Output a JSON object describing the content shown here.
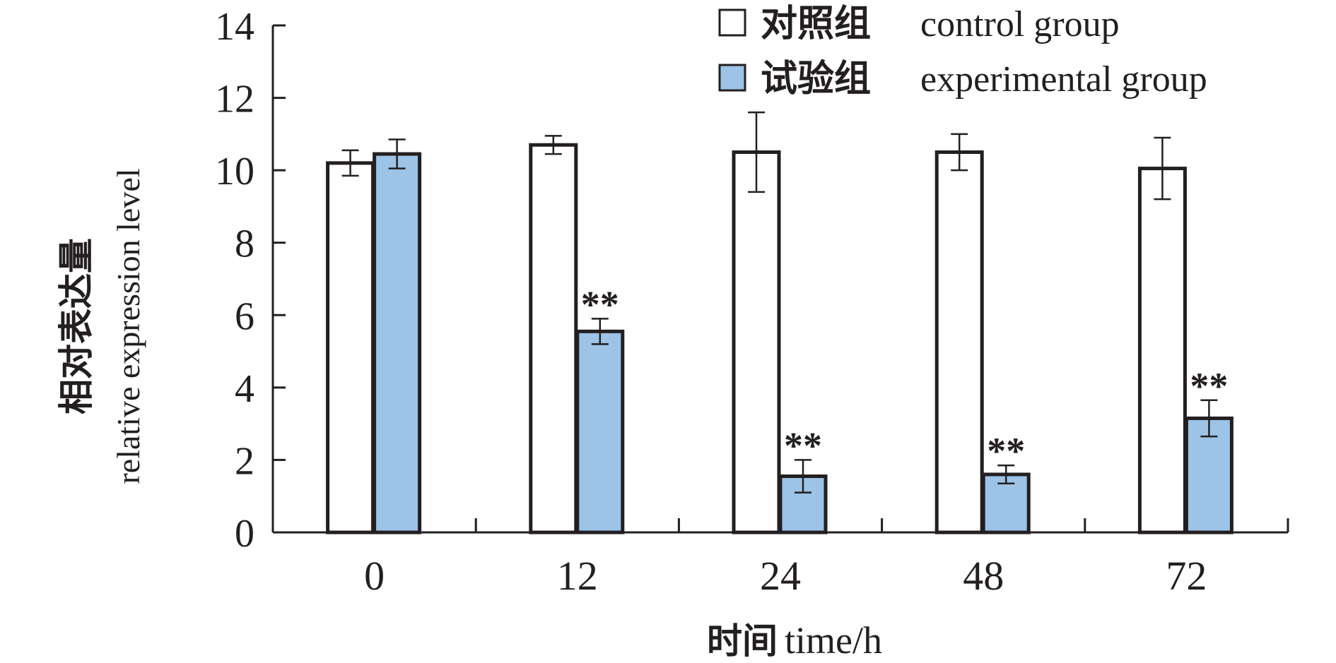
{
  "chart_data": {
    "type": "bar",
    "ylabel": {
      "cn": "相对表达量",
      "en": "relative expression level"
    },
    "xlabel": {
      "cn": "时间",
      "en": "time/h"
    },
    "ylim": [
      0,
      14
    ],
    "yticks": [
      0,
      2,
      4,
      6,
      8,
      10,
      12,
      14
    ],
    "categories": [
      "0",
      "12",
      "24",
      "48",
      "72"
    ],
    "legend_position": "top-right",
    "series": [
      {
        "name_cn": "对照组",
        "name_en": "control group",
        "color": "#ffffff",
        "values": [
          10.2,
          10.7,
          10.5,
          10.5,
          10.05
        ],
        "errors": [
          0.35,
          0.25,
          1.1,
          0.5,
          0.85
        ],
        "marks": [
          "",
          "",
          "",
          "",
          ""
        ]
      },
      {
        "name_cn": "试验组",
        "name_en": "experimental group",
        "color": "#9dc3e6",
        "values": [
          10.45,
          5.55,
          1.55,
          1.6,
          3.15
        ],
        "errors": [
          0.4,
          0.35,
          0.45,
          0.25,
          0.5
        ],
        "marks": [
          "",
          "**",
          "**",
          "**",
          "**"
        ]
      }
    ]
  }
}
